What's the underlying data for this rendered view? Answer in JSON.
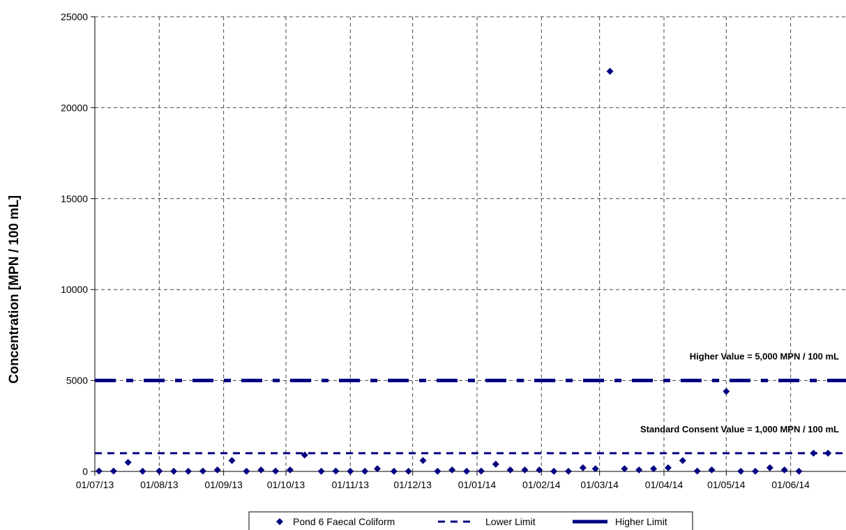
{
  "chart_data": {
    "type": "scatter",
    "title": "",
    "xlabel": "",
    "ylabel": "Concentration [MPN / 100 mL]",
    "ylim": [
      0,
      25000
    ],
    "yticks": [
      "0",
      "5000",
      "10000",
      "15000",
      "20000",
      "25000"
    ],
    "xlim": [
      "2013-07-01",
      "2014-07-01"
    ],
    "xtick_dates": [
      "2013-07-01",
      "2013-08-01",
      "2013-09-01",
      "2013-10-01",
      "2013-11-01",
      "2013-12-01",
      "2014-01-01",
      "2014-02-01",
      "2014-03-01",
      "2014-04-01",
      "2014-05-01",
      "2014-06-01"
    ],
    "xtick_labels": [
      "01/07/13",
      "01/08/13",
      "01/09/13",
      "01/10/13",
      "01/11/13",
      "01/12/13",
      "01/01/14",
      "01/02/14",
      "01/03/14",
      "01/04/14",
      "01/05/14",
      "01/06/14"
    ],
    "grid": true,
    "legend_position": "bottom",
    "series": [
      {
        "name": "Pond 6 Faecal Coliform",
        "kind": "scatter",
        "color": "#000080",
        "x": [
          "2013-07-03",
          "2013-07-10",
          "2013-07-17",
          "2013-07-24",
          "2013-08-01",
          "2013-08-08",
          "2013-08-15",
          "2013-08-22",
          "2013-08-29",
          "2013-09-05",
          "2013-09-12",
          "2013-09-19",
          "2013-09-26",
          "2013-10-03",
          "2013-10-10",
          "2013-10-18",
          "2013-10-25",
          "2013-11-01",
          "2013-11-08",
          "2013-11-14",
          "2013-11-22",
          "2013-11-29",
          "2013-12-06",
          "2013-12-13",
          "2013-12-20",
          "2013-12-27",
          "2014-01-03",
          "2014-01-10",
          "2014-01-17",
          "2014-01-24",
          "2014-01-31",
          "2014-02-07",
          "2014-02-14",
          "2014-02-21",
          "2014-02-27",
          "2014-03-06",
          "2014-03-13",
          "2014-03-20",
          "2014-03-27",
          "2014-04-03",
          "2014-04-10",
          "2014-04-17",
          "2014-04-24",
          "2014-05-01",
          "2014-05-08",
          "2014-05-15",
          "2014-05-22",
          "2014-05-29",
          "2014-06-05",
          "2014-06-12",
          "2014-06-19",
          "2014-06-30"
        ],
        "y": [
          20,
          20,
          500,
          10,
          20,
          10,
          10,
          20,
          80,
          600,
          10,
          80,
          20,
          80,
          900,
          10,
          20,
          10,
          10,
          150,
          10,
          10,
          600,
          10,
          80,
          10,
          20,
          400,
          80,
          80,
          80,
          10,
          10,
          200,
          150,
          22000,
          150,
          80,
          150,
          200,
          600,
          20,
          80,
          4400,
          10,
          10,
          200,
          80,
          10,
          1000,
          1000,
          100
        ]
      },
      {
        "name": "Lower Limit",
        "kind": "hline",
        "value": 1000,
        "color": "#000080"
      },
      {
        "name": "Higher Limit",
        "kind": "hline",
        "value": 5000,
        "color": "#000080"
      }
    ],
    "annotations": [
      {
        "text": "Higher Value = 5,000 MPN / 100 mL",
        "y": 5000
      },
      {
        "text": "Standard Consent Value = 1,000 MPN / 100 mL",
        "y": 1000
      }
    ]
  }
}
